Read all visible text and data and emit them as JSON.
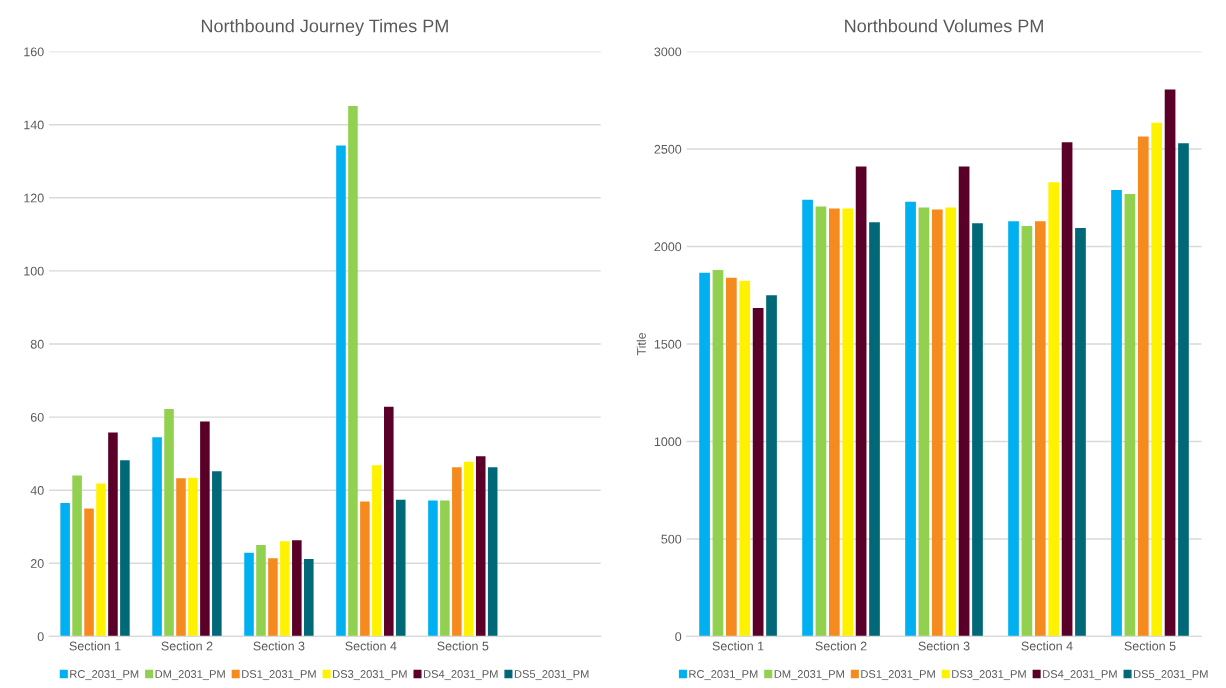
{
  "chart_data": [
    {
      "type": "bar",
      "title": "Northbound Journey Times PM",
      "categories": [
        "Section 1",
        "Section 2",
        "Section 3",
        "Section 4",
        "Section 5",
        null
      ],
      "ylim": [
        0,
        160
      ],
      "yticks": [
        0,
        20,
        40,
        60,
        80,
        100,
        120,
        140,
        160
      ],
      "grid": "y",
      "legend": "bottom",
      "series": [
        {
          "name": "RC_2031_PM",
          "color": "#00b0f0",
          "values": [
            36.5,
            54.5,
            22.9,
            134.3,
            37.2,
            null
          ]
        },
        {
          "name": "DM_2031_PM",
          "color": "#92d050",
          "values": [
            44,
            62.2,
            25,
            145.1,
            37.2,
            null
          ]
        },
        {
          "name": "DS1_2031_PM",
          "color": "#f58b1f",
          "values": [
            35,
            43.3,
            21.4,
            36.9,
            46.3,
            null
          ]
        },
        {
          "name": "DS3_2031_PM",
          "color": "#fff200",
          "values": [
            41.8,
            43.4,
            26,
            46.8,
            47.8,
            null
          ]
        },
        {
          "name": "DS4_2031_PM",
          "color": "#5a0028",
          "values": [
            55.8,
            58.8,
            26.3,
            62.8,
            49.3,
            null
          ]
        },
        {
          "name": "DS5_2031_PM",
          "color": "#006877",
          "values": [
            48.2,
            45.2,
            21.2,
            37.4,
            46.3,
            null
          ]
        }
      ]
    },
    {
      "type": "bar",
      "title": "Northbound Volumes PM",
      "ylabel": "Title",
      "categories": [
        "Section 1",
        "Section 2",
        "Section 3",
        "Section 4",
        "Section 5"
      ],
      "ylim": [
        0,
        3000
      ],
      "yticks": [
        0,
        500,
        1000,
        1500,
        2000,
        2500,
        3000
      ],
      "grid": "y",
      "legend": "bottom",
      "series": [
        {
          "name": "RC_2031_PM",
          "color": "#00b0f0",
          "values": [
            1865,
            2240,
            2230,
            2130,
            2290
          ]
        },
        {
          "name": "DM_2031_PM",
          "color": "#92d050",
          "values": [
            1880,
            2205,
            2200,
            2105,
            2270
          ]
        },
        {
          "name": "DS1_2031_PM",
          "color": "#f58b1f",
          "values": [
            1840,
            2195,
            2190,
            2130,
            2565
          ]
        },
        {
          "name": "DS3_2031_PM",
          "color": "#fff200",
          "values": [
            1825,
            2195,
            2200,
            2330,
            2635
          ]
        },
        {
          "name": "DS4_2031_PM",
          "color": "#5a0028",
          "values": [
            1685,
            2410,
            2410,
            2535,
            2805
          ]
        },
        {
          "name": "DS5_2031_PM",
          "color": "#006877",
          "values": [
            1750,
            2125,
            2120,
            2095,
            2530
          ]
        }
      ]
    }
  ]
}
